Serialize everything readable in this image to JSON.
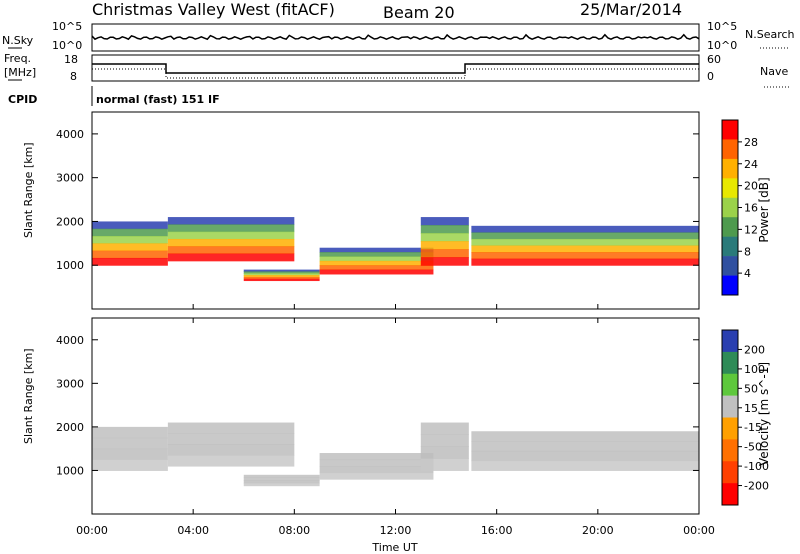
{
  "header": {
    "title": "Christmas Valley West (fitACF)",
    "beam": "Beam 20",
    "date": "25/Mar/2014"
  },
  "sky_panel": {
    "left_label": "N.Sky",
    "left_ticks": [
      "10^5",
      "10^0"
    ],
    "right_ticks": [
      "10^5",
      "10^0"
    ],
    "right_label": "N.Search"
  },
  "freq_panel": {
    "left_label_1": "Freq.",
    "left_label_2": "[MHz]",
    "left_ticks": [
      "18",
      "8"
    ],
    "right_ticks": [
      "60",
      "0"
    ],
    "right_label": "Nave"
  },
  "cpid": {
    "label": "CPID",
    "mode": "normal (fast) 151 IF"
  },
  "chart_data": [
    {
      "type": "heatmap",
      "quantity": "Power",
      "ylabel": "Slant Range [km]",
      "ylim": [
        0,
        4500
      ],
      "yticks": [
        "1000",
        "2000",
        "3000",
        "4000"
      ],
      "colorbar_label": "Power [dB]",
      "colorbar_ticks": [
        "28",
        "24",
        "20",
        "16",
        "12",
        "8",
        "4"
      ],
      "colorbar_colors": [
        "#ff0000",
        "#ff6400",
        "#ffb000",
        "#e8e800",
        "#9bd24a",
        "#4e9a4e",
        "#2a7a7a",
        "#3050a0",
        "#0000ff"
      ],
      "echo_bands": [
        {
          "t0": 0.0,
          "t1": 3.0,
          "r0": 1000,
          "r1": 2000
        },
        {
          "t0": 3.0,
          "t1": 8.0,
          "r0": 1100,
          "r1": 2100
        },
        {
          "t0": 6.0,
          "t1": 9.0,
          "r0": 650,
          "r1": 900
        },
        {
          "t0": 9.0,
          "t1": 13.5,
          "r0": 800,
          "r1": 1400
        },
        {
          "t0": 13.0,
          "t1": 14.9,
          "r0": 1000,
          "r1": 2100
        },
        {
          "t0": 15.0,
          "t1": 24.0,
          "r0": 1000,
          "r1": 1900
        }
      ]
    },
    {
      "type": "heatmap",
      "quantity": "Velocity",
      "ylabel": "Slant Range [km]",
      "ylim": [
        0,
        4500
      ],
      "yticks": [
        "1000",
        "2000",
        "3000",
        "4000"
      ],
      "colorbar_label": "Velocity [m s^-1]",
      "colorbar_ticks": [
        "200",
        "100",
        "50",
        "15",
        "-15",
        "-50",
        "-100",
        "-200"
      ],
      "colorbar_colors": [
        "#2a3fb0",
        "#2e8b57",
        "#5ec83c",
        "#c0c0c0",
        "#ffa000",
        "#ff7000",
        "#ff4000",
        "#ff0000"
      ],
      "xlabel": "Time UT",
      "xticks": [
        "00:00",
        "04:00",
        "08:00",
        "12:00",
        "16:00",
        "20:00",
        "00:00"
      ]
    }
  ]
}
